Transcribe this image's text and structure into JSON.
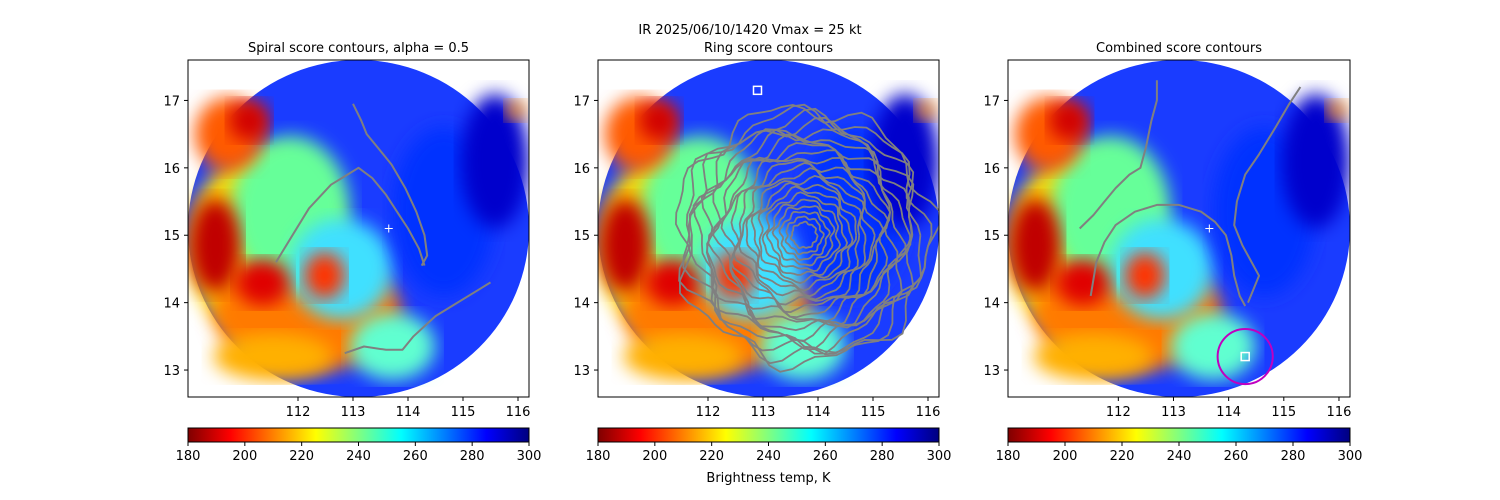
{
  "figure": {
    "suptitle": "IR  2025/06/10/1420    Vmax = 25 kt",
    "colorbar_label": "Brightness temp, K"
  },
  "colors": {
    "contour": "#808080",
    "center_marker": "#ffffff",
    "circle": "#c000c0",
    "colormap": [
      "#800000",
      "#ff0000",
      "#ff8000",
      "#ffff00",
      "#80ff80",
      "#00ffff",
      "#0080ff",
      "#0000ff",
      "#000080"
    ]
  },
  "chart_data": [
    {
      "type": "heatmap",
      "title": "Spiral score contours, alpha =  0.5",
      "xlim": [
        110.0,
        116.2
      ],
      "ylim": [
        12.6,
        17.6
      ],
      "xticks": [
        112,
        113,
        114,
        115,
        116
      ],
      "yticks": [
        13,
        14,
        15,
        16,
        17
      ],
      "colorbar": {
        "range": [
          180,
          300
        ],
        "ticks": [
          180,
          200,
          220,
          240,
          260,
          280,
          300
        ],
        "label": ""
      },
      "markers": [
        {
          "kind": "plus",
          "x": 113.65,
          "y": 15.1
        }
      ],
      "contours": [
        [
          [
            111.6,
            14.6
          ],
          [
            111.9,
            15.0
          ],
          [
            112.2,
            15.4
          ],
          [
            112.6,
            15.75
          ],
          [
            112.9,
            15.9
          ],
          [
            113.1,
            16.0
          ],
          [
            113.35,
            15.85
          ],
          [
            113.6,
            15.6
          ],
          [
            113.8,
            15.35
          ],
          [
            114.0,
            15.1
          ],
          [
            114.2,
            14.8
          ],
          [
            114.3,
            14.55
          ]
        ],
        [
          [
            113.0,
            16.95
          ],
          [
            113.15,
            16.7
          ],
          [
            113.25,
            16.5
          ],
          [
            113.45,
            16.3
          ],
          [
            113.7,
            16.05
          ],
          [
            113.95,
            15.7
          ],
          [
            114.15,
            15.35
          ],
          [
            114.3,
            15.0
          ],
          [
            114.35,
            14.7
          ],
          [
            114.25,
            14.55
          ]
        ],
        [
          [
            112.85,
            13.25
          ],
          [
            113.2,
            13.35
          ],
          [
            113.6,
            13.3
          ],
          [
            113.9,
            13.3
          ],
          [
            114.1,
            13.5
          ],
          [
            114.5,
            13.8
          ],
          [
            114.9,
            14.0
          ],
          [
            115.3,
            14.2
          ],
          [
            115.5,
            14.3
          ]
        ]
      ]
    },
    {
      "type": "heatmap",
      "title": "Ring score contours",
      "xlim": [
        110.0,
        116.2
      ],
      "ylim": [
        12.6,
        17.6
      ],
      "xticks": [
        112,
        113,
        114,
        115,
        116
      ],
      "yticks": [
        13,
        14,
        15,
        16,
        17
      ],
      "colorbar": {
        "range": [
          180,
          300
        ],
        "ticks": [
          180,
          200,
          220,
          240,
          260,
          280,
          300
        ],
        "label": "Brightness temp, K"
      },
      "markers": [
        {
          "kind": "square",
          "x": 112.9,
          "y": 17.15
        }
      ],
      "ring_region": {
        "center": [
          113.75,
          15.0
        ],
        "radius_deg": 2.3
      }
    },
    {
      "type": "heatmap",
      "title": "Combined score contours",
      "xlim": [
        110.0,
        116.2
      ],
      "ylim": [
        12.6,
        17.6
      ],
      "xticks": [
        112,
        113,
        114,
        115,
        116
      ],
      "yticks": [
        13,
        14,
        15,
        16,
        17
      ],
      "colorbar": {
        "range": [
          180,
          300
        ],
        "ticks": [
          180,
          200,
          220,
          240,
          260,
          280,
          300
        ],
        "label": ""
      },
      "markers": [
        {
          "kind": "plus",
          "x": 113.65,
          "y": 15.1
        },
        {
          "kind": "square",
          "x": 114.3,
          "y": 13.2
        }
      ],
      "circle": {
        "center": [
          114.3,
          13.2
        ],
        "radius_deg": 0.5
      },
      "contours": [
        [
          [
            111.3,
            15.1
          ],
          [
            111.55,
            15.3
          ],
          [
            111.75,
            15.5
          ],
          [
            111.95,
            15.7
          ],
          [
            112.2,
            15.9
          ],
          [
            112.4,
            16.0
          ],
          [
            112.5,
            16.3
          ],
          [
            112.6,
            16.7
          ],
          [
            112.7,
            17.0
          ],
          [
            112.7,
            17.3
          ]
        ],
        [
          [
            111.5,
            14.1
          ],
          [
            111.6,
            14.6
          ],
          [
            111.75,
            14.9
          ],
          [
            111.95,
            15.15
          ],
          [
            112.3,
            15.35
          ],
          [
            112.7,
            15.45
          ],
          [
            113.1,
            15.45
          ],
          [
            113.5,
            15.35
          ],
          [
            113.75,
            15.2
          ],
          [
            113.95,
            15.0
          ],
          [
            114.05,
            14.7
          ],
          [
            114.1,
            14.4
          ],
          [
            114.2,
            14.1
          ],
          [
            114.3,
            13.95
          ]
        ],
        [
          [
            115.3,
            17.2
          ],
          [
            115.1,
            16.95
          ],
          [
            114.85,
            16.6
          ],
          [
            114.55,
            16.2
          ],
          [
            114.3,
            15.9
          ],
          [
            114.15,
            15.5
          ],
          [
            114.1,
            15.15
          ],
          [
            114.25,
            14.85
          ],
          [
            114.45,
            14.55
          ],
          [
            114.55,
            14.4
          ],
          [
            114.45,
            14.2
          ],
          [
            114.35,
            14.0
          ]
        ]
      ]
    }
  ]
}
